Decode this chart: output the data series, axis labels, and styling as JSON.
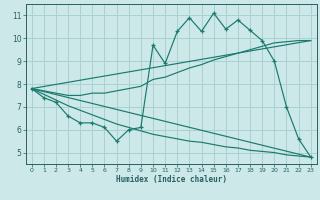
{
  "xlabel": "Humidex (Indice chaleur)",
  "bg_color": "#cce8e8",
  "grid_color": "#aad0d0",
  "line_color": "#1a7a6e",
  "spine_color": "#2a6060",
  "xlim": [
    -0.5,
    23.5
  ],
  "ylim": [
    4.5,
    11.5
  ],
  "xticks": [
    0,
    1,
    2,
    3,
    4,
    5,
    6,
    7,
    8,
    9,
    10,
    11,
    12,
    13,
    14,
    15,
    16,
    17,
    18,
    19,
    20,
    21,
    22,
    23
  ],
  "yticks": [
    5,
    6,
    7,
    8,
    9,
    10,
    11
  ],
  "main_line": {
    "x": [
      0,
      1,
      2,
      3,
      4,
      5,
      6,
      7,
      8,
      9,
      10,
      11,
      12,
      13,
      14,
      15,
      16,
      17,
      18,
      19,
      20,
      21,
      22,
      23
    ],
    "y": [
      7.8,
      7.4,
      7.2,
      6.6,
      6.3,
      6.3,
      6.1,
      5.5,
      6.0,
      6.1,
      9.7,
      8.9,
      10.3,
      10.9,
      10.3,
      11.1,
      10.4,
      10.8,
      10.35,
      9.9,
      9.0,
      7.0,
      5.6,
      4.8
    ]
  },
  "upper_envelope": {
    "x": [
      0,
      1,
      2,
      3,
      4,
      5,
      6,
      7,
      8,
      9,
      10,
      11,
      12,
      13,
      14,
      15,
      16,
      17,
      18,
      19,
      20,
      21,
      22,
      23
    ],
    "y": [
      7.8,
      7.7,
      7.6,
      7.5,
      7.5,
      7.6,
      7.6,
      7.7,
      7.8,
      7.9,
      8.2,
      8.3,
      8.5,
      8.7,
      8.85,
      9.05,
      9.2,
      9.35,
      9.5,
      9.65,
      9.8,
      9.85,
      9.9,
      9.9
    ]
  },
  "lower_envelope": {
    "x": [
      0,
      1,
      2,
      3,
      4,
      5,
      6,
      7,
      8,
      9,
      10,
      11,
      12,
      13,
      14,
      15,
      16,
      17,
      18,
      19,
      20,
      21,
      22,
      23
    ],
    "y": [
      7.8,
      7.55,
      7.3,
      7.05,
      6.85,
      6.65,
      6.45,
      6.25,
      6.1,
      5.95,
      5.8,
      5.7,
      5.6,
      5.5,
      5.45,
      5.35,
      5.25,
      5.2,
      5.1,
      5.05,
      5.0,
      4.9,
      4.85,
      4.8
    ]
  },
  "reg_upper": {
    "x": [
      0,
      23
    ],
    "y": [
      7.8,
      9.9
    ]
  },
  "reg_lower": {
    "x": [
      0,
      23
    ],
    "y": [
      7.8,
      4.8
    ]
  }
}
